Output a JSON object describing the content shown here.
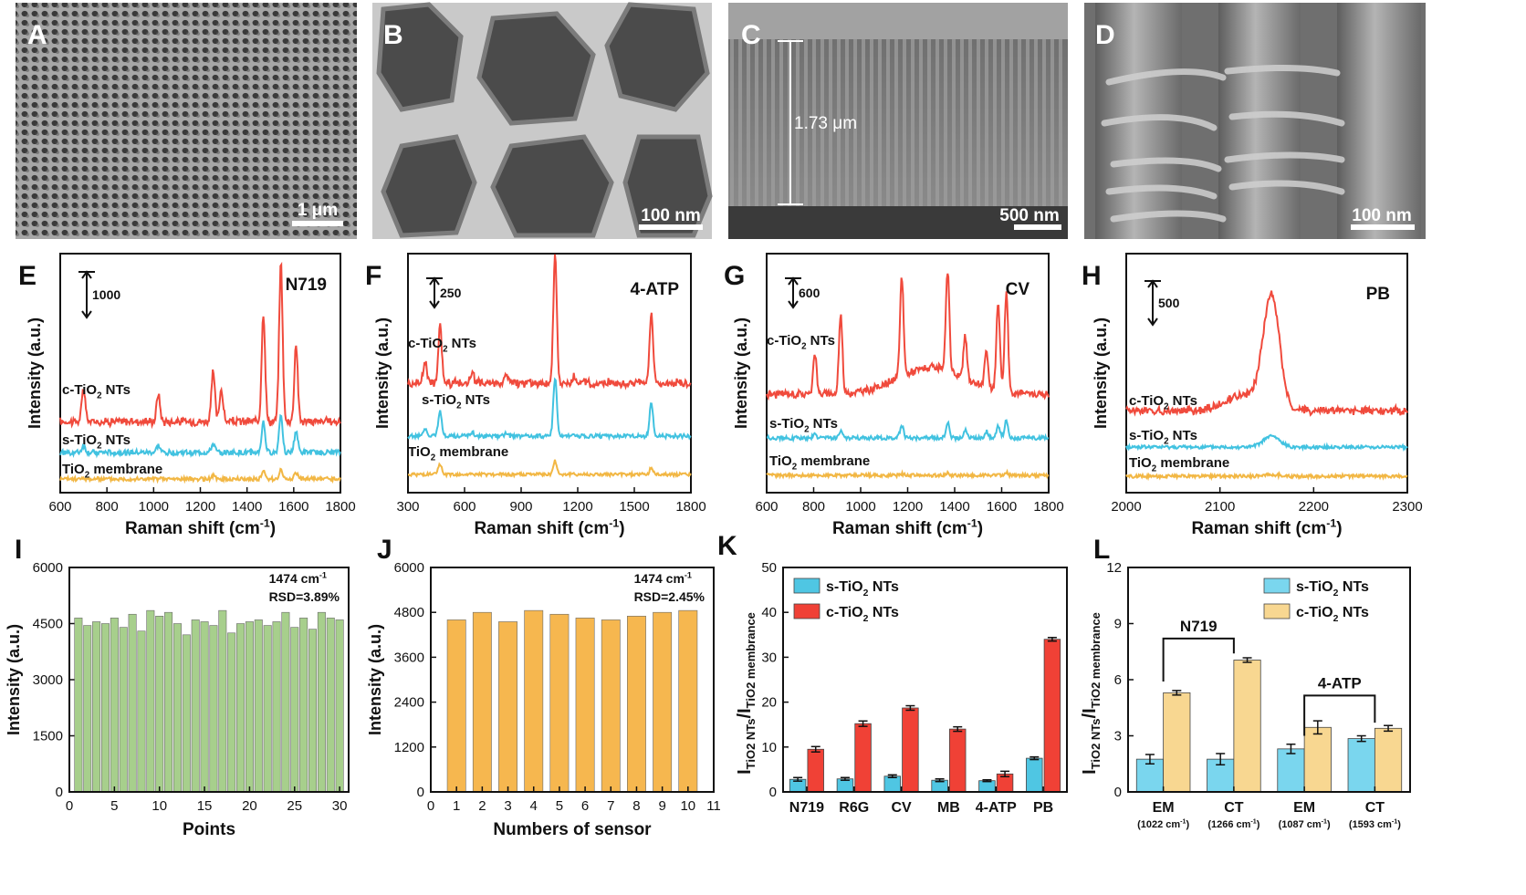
{
  "micrographs": [
    {
      "letter": "A",
      "scale": "1 μm"
    },
    {
      "letter": "B",
      "scale": "100 nm"
    },
    {
      "letter": "C",
      "scale": "500 nm",
      "thickness": "1.73 μm"
    },
    {
      "letter": "D",
      "scale": "100 nm"
    }
  ],
  "chart_data": [
    {
      "letter": "E",
      "type": "line",
      "title": "N719",
      "xlabel": "Raman shift (cm⁻¹)",
      "ylabel": "Intensity (a.u.)",
      "xlim": [
        600,
        1800
      ],
      "xticks": [
        600,
        800,
        1000,
        1200,
        1400,
        1600,
        1800
      ],
      "scalebar": "1000",
      "series": [
        {
          "name": "c-TiO₂ NTs",
          "color": "#f04a3c",
          "peaks": [
            [
              700,
              0.3
            ],
            [
              1020,
              0.25
            ],
            [
              1255,
              0.45
            ],
            [
              1290,
              0.3
            ],
            [
              1470,
              1.0
            ],
            [
              1545,
              1.45
            ],
            [
              1610,
              0.7
            ]
          ]
        },
        {
          "name": "s-TiO₂ NTs",
          "color": "#41c2e0",
          "peaks": [
            [
              700,
              0.08
            ],
            [
              1020,
              0.08
            ],
            [
              1255,
              0.1
            ],
            [
              1470,
              0.35
            ],
            [
              1545,
              0.45
            ],
            [
              1610,
              0.25
            ]
          ]
        },
        {
          "name": "TiO₂ membrane",
          "color": "#f2b744",
          "peaks": [
            [
              1255,
              0.05
            ],
            [
              1470,
              0.12
            ],
            [
              1545,
              0.14
            ],
            [
              1610,
              0.1
            ]
          ]
        }
      ]
    },
    {
      "letter": "F",
      "type": "line",
      "title": "4-ATP",
      "xlabel": "Raman shift (cm⁻¹)",
      "ylabel": "Intensity (a.u.)",
      "xlim": [
        300,
        1800
      ],
      "xticks": [
        300,
        600,
        900,
        1200,
        1500,
        1800
      ],
      "scalebar": "250",
      "series": [
        {
          "name": "c-TiO₂ NTs",
          "color": "#f04a3c",
          "peaks": [
            [
              390,
              0.2
            ],
            [
              470,
              0.5
            ],
            [
              640,
              0.1
            ],
            [
              820,
              0.08
            ],
            [
              1080,
              1.1
            ],
            [
              1180,
              0.05
            ],
            [
              1590,
              0.6
            ]
          ]
        },
        {
          "name": "s-TiO₂ NTs",
          "color": "#41c2e0",
          "peaks": [
            [
              390,
              0.1
            ],
            [
              470,
              0.4
            ],
            [
              640,
              0.06
            ],
            [
              820,
              0.05
            ],
            [
              1080,
              0.9
            ],
            [
              1590,
              0.5
            ]
          ]
        },
        {
          "name": "TiO₂ membrane",
          "color": "#f2b744",
          "peaks": [
            [
              470,
              0.18
            ],
            [
              1080,
              0.25
            ],
            [
              1590,
              0.12
            ]
          ]
        }
      ]
    },
    {
      "letter": "G",
      "type": "line",
      "title": "CV",
      "xlabel": "Raman shift (cm⁻¹)",
      "ylabel": "Intensity (a.u.)",
      "xlim": [
        600,
        1800
      ],
      "xticks": [
        600,
        800,
        1000,
        1200,
        1400,
        1600,
        1800
      ],
      "scalebar": "600",
      "series": [
        {
          "name": "c-TiO₂ NTs",
          "color": "#f04a3c",
          "peaks": [
            [
              805,
              0.4
            ],
            [
              915,
              0.75
            ],
            [
              1175,
              0.95
            ],
            [
              1370,
              0.95
            ],
            [
              1445,
              0.4
            ],
            [
              1535,
              0.35
            ],
            [
              1585,
              0.85
            ],
            [
              1620,
              0.95
            ]
          ]
        },
        {
          "name": "s-TiO₂ NTs",
          "color": "#41c2e0",
          "peaks": [
            [
              805,
              0.05
            ],
            [
              915,
              0.1
            ],
            [
              1175,
              0.2
            ],
            [
              1370,
              0.25
            ],
            [
              1445,
              0.12
            ],
            [
              1535,
              0.1
            ],
            [
              1585,
              0.2
            ],
            [
              1620,
              0.28
            ]
          ]
        },
        {
          "name": "TiO₂ membrane",
          "color": "#f2b744",
          "peaks": [
            [
              1175,
              0.03
            ],
            [
              1370,
              0.04
            ],
            [
              1620,
              0.05
            ]
          ]
        }
      ]
    },
    {
      "letter": "H",
      "type": "line",
      "title": "PB",
      "xlabel": "Raman shift (cm⁻¹)",
      "ylabel": "Intensity (a.u.)",
      "xlim": [
        2000,
        2300
      ],
      "xticks": [
        2000,
        2100,
        2200,
        2300
      ],
      "scalebar": "500",
      "series": [
        {
          "name": "c-TiO₂ NTs",
          "color": "#f04a3c",
          "peaks": [
            [
              2155,
              1.0
            ]
          ]
        },
        {
          "name": "s-TiO₂ NTs",
          "color": "#41c2e0",
          "peaks": [
            [
              2155,
              0.2
            ]
          ]
        },
        {
          "name": "TiO₂ membrane",
          "color": "#f2b744",
          "peaks": [
            [
              2155,
              0.03
            ]
          ]
        }
      ]
    },
    {
      "letter": "I",
      "type": "bar",
      "xlabel": "Points",
      "ylabel": "Intensity (a.u.)",
      "xlim": [
        0,
        31
      ],
      "ylim": [
        0,
        6000
      ],
      "xticks": [
        0,
        5,
        10,
        15,
        20,
        25,
        30
      ],
      "yticks": [
        0,
        1500,
        3000,
        4500,
        6000
      ],
      "annotation": [
        "1474 cm⁻¹",
        "RSD=3.89%"
      ],
      "color": "#a7cf8c",
      "categories": [
        1,
        2,
        3,
        4,
        5,
        6,
        7,
        8,
        9,
        10,
        11,
        12,
        13,
        14,
        15,
        16,
        17,
        18,
        19,
        20,
        21,
        22,
        23,
        24,
        25,
        26,
        27,
        28,
        29,
        30
      ],
      "values": [
        4650,
        4450,
        4550,
        4500,
        4650,
        4400,
        4750,
        4300,
        4850,
        4700,
        4800,
        4500,
        4200,
        4600,
        4550,
        4450,
        4850,
        4250,
        4500,
        4550,
        4600,
        4450,
        4550,
        4800,
        4400,
        4650,
        4350,
        4800,
        4650,
        4600
      ]
    },
    {
      "letter": "J",
      "type": "bar",
      "xlabel": "Numbers of sensor",
      "ylabel": "Intensity (a.u.)",
      "xlim": [
        0,
        11
      ],
      "ylim": [
        0,
        6000
      ],
      "xticks": [
        0,
        1,
        2,
        3,
        4,
        5,
        6,
        7,
        8,
        9,
        10,
        11
      ],
      "yticks": [
        0,
        1200,
        2400,
        3600,
        4800,
        6000
      ],
      "annotation": [
        "1474 cm⁻¹",
        "RSD=2.45%"
      ],
      "color": "#f6b74f",
      "categories": [
        1,
        2,
        3,
        4,
        5,
        6,
        7,
        8,
        9,
        10
      ],
      "values": [
        4600,
        4800,
        4550,
        4850,
        4750,
        4650,
        4600,
        4700,
        4800,
        4850
      ]
    },
    {
      "letter": "K",
      "type": "bar",
      "ylabel": "I_TiO2 NTs/I_TiO2 membrance",
      "ylim": [
        0,
        50
      ],
      "yticks": [
        0,
        10,
        20,
        30,
        40,
        50
      ],
      "categories": [
        "N719",
        "R6G",
        "CV",
        "MB",
        "4-ATP",
        "PB"
      ],
      "series": [
        {
          "name": "s-TiO₂ NTs",
          "color": "#4fc6e3",
          "values": [
            2.8,
            2.9,
            3.5,
            2.6,
            2.5,
            7.5
          ],
          "errors": [
            0.4,
            0.3,
            0.3,
            0.3,
            0.2,
            0.3
          ]
        },
        {
          "name": "c-TiO₂ NTs",
          "color": "#f04136",
          "values": [
            9.5,
            15.2,
            18.7,
            14.0,
            4.0,
            34.0
          ],
          "errors": [
            0.6,
            0.6,
            0.5,
            0.5,
            0.6,
            0.4
          ]
        }
      ]
    },
    {
      "letter": "L",
      "type": "bar",
      "ylabel": "I_TiO2 NTs/I_TiO2 membrance",
      "ylim": [
        0,
        12
      ],
      "yticks": [
        0,
        3,
        6,
        9,
        12
      ],
      "categories": [
        "EM",
        "CT",
        "EM",
        "CT"
      ],
      "sublabels": [
        "(1022 cm⁻¹)",
        "(1266 cm⁻¹)",
        "(1087 cm⁻¹)",
        "(1593 cm⁻¹)"
      ],
      "brackets": [
        "N719",
        "4-ATP"
      ],
      "series": [
        {
          "name": "s-TiO₂ NTs",
          "color": "#7ad6ee",
          "values": [
            1.75,
            1.75,
            2.3,
            2.85
          ],
          "errors": [
            0.25,
            0.3,
            0.25,
            0.15
          ]
        },
        {
          "name": "c-TiO₂ NTs",
          "color": "#f8d791",
          "values": [
            5.3,
            7.05,
            3.45,
            3.4
          ],
          "errors": [
            0.12,
            0.12,
            0.35,
            0.15
          ]
        }
      ]
    }
  ]
}
